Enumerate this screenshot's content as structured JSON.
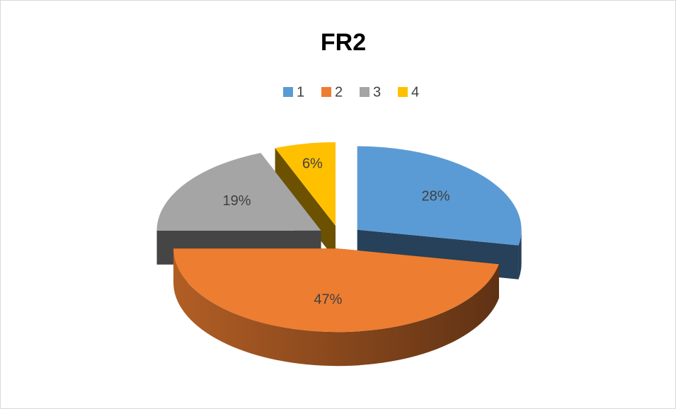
{
  "chart_data": {
    "type": "pie",
    "title": "FR2",
    "categories": [
      "1",
      "2",
      "3",
      "4"
    ],
    "values": [
      28,
      47,
      19,
      6
    ],
    "value_labels": [
      "28%",
      "47%",
      "19%",
      "6%"
    ],
    "colors": [
      "#5b9bd5",
      "#ed7d31",
      "#a5a5a5",
      "#ffc000"
    ],
    "legend": "top"
  }
}
